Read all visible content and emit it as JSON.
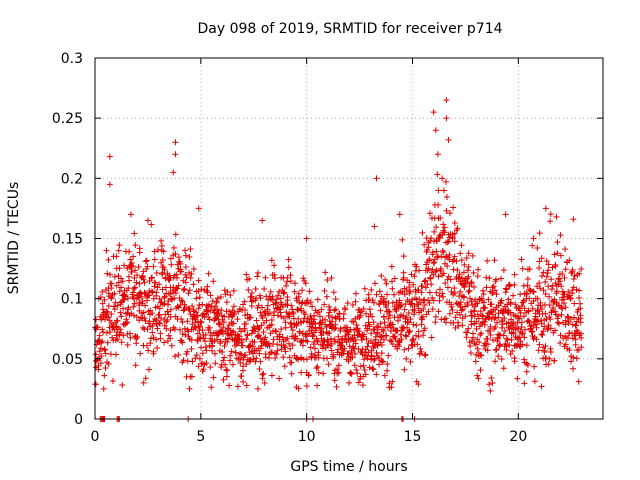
{
  "chart_data": {
    "type": "scatter",
    "title": "Day 098 of 2019, SRMTID for receiver p714",
    "xlabel": "GPS time / hours",
    "ylabel": "SRMTID / TECUs",
    "xlim": [
      0,
      24
    ],
    "ylim": [
      0,
      0.3
    ],
    "grid": true,
    "marker": "plus",
    "color": "#e00000",
    "x_ticks": [
      0,
      5,
      10,
      15,
      20
    ],
    "x_tick_labels": [
      "0",
      "5",
      "10",
      "15",
      "20"
    ],
    "y_ticks": [
      0,
      0.05,
      0.1,
      0.15,
      0.2,
      0.25,
      0.3
    ],
    "y_tick_labels": [
      "0",
      "0.05",
      "0.1",
      "0.15",
      "0.2",
      "0.25",
      "0.3"
    ],
    "envelope": {
      "hours": [
        0,
        0.5,
        1,
        2,
        3,
        4,
        5,
        6,
        7,
        8,
        9,
        10,
        11,
        12,
        13,
        14,
        15,
        15.5,
        16,
        16.5,
        17,
        18,
        19,
        20,
        21,
        22,
        23
      ],
      "mean": [
        0.06,
        0.08,
        0.095,
        0.1,
        0.1,
        0.095,
        0.08,
        0.07,
        0.07,
        0.08,
        0.08,
        0.075,
        0.07,
        0.065,
        0.075,
        0.08,
        0.08,
        0.1,
        0.13,
        0.14,
        0.12,
        0.08,
        0.08,
        0.085,
        0.09,
        0.1,
        0.085
      ],
      "spread": [
        0.02,
        0.03,
        0.035,
        0.035,
        0.035,
        0.035,
        0.03,
        0.025,
        0.025,
        0.03,
        0.03,
        0.025,
        0.025,
        0.02,
        0.025,
        0.03,
        0.03,
        0.035,
        0.04,
        0.04,
        0.035,
        0.03,
        0.03,
        0.03,
        0.035,
        0.035,
        0.03
      ]
    },
    "points_per_hour": 95,
    "notable_points": [
      {
        "x": 0.7,
        "y": 0.218
      },
      {
        "x": 0.7,
        "y": 0.195
      },
      {
        "x": 3.8,
        "y": 0.23
      },
      {
        "x": 3.8,
        "y": 0.22
      },
      {
        "x": 3.7,
        "y": 0.205
      },
      {
        "x": 13.3,
        "y": 0.2
      },
      {
        "x": 16.0,
        "y": 0.255
      },
      {
        "x": 16.1,
        "y": 0.24
      },
      {
        "x": 16.2,
        "y": 0.22
      },
      {
        "x": 16.6,
        "y": 0.265
      },
      {
        "x": 16.6,
        "y": 0.25
      },
      {
        "x": 16.7,
        "y": 0.232
      },
      {
        "x": 16.4,
        "y": 0.2
      },
      {
        "x": 1.7,
        "y": 0.17
      },
      {
        "x": 2.5,
        "y": 0.165
      },
      {
        "x": 4.9,
        "y": 0.175
      },
      {
        "x": 7.9,
        "y": 0.165
      },
      {
        "x": 10.0,
        "y": 0.15
      },
      {
        "x": 13.2,
        "y": 0.16
      },
      {
        "x": 14.4,
        "y": 0.17
      },
      {
        "x": 19.4,
        "y": 0.17
      },
      {
        "x": 21.3,
        "y": 0.175
      },
      {
        "x": 21.8,
        "y": 0.168
      },
      {
        "x": 22.6,
        "y": 0.166
      },
      {
        "x": 12.0,
        "y": 0.03
      },
      {
        "x": 7.7,
        "y": 0.025
      },
      {
        "x": 4.5,
        "y": 0.035
      },
      {
        "x": 2.3,
        "y": 0.03
      }
    ],
    "zero_points_x": [
      0.25,
      0.3,
      0.35,
      0.4,
      0.45,
      1.05,
      1.1,
      1.15,
      4.4,
      10.0,
      10.3,
      14.5,
      14.55,
      15.1
    ]
  }
}
